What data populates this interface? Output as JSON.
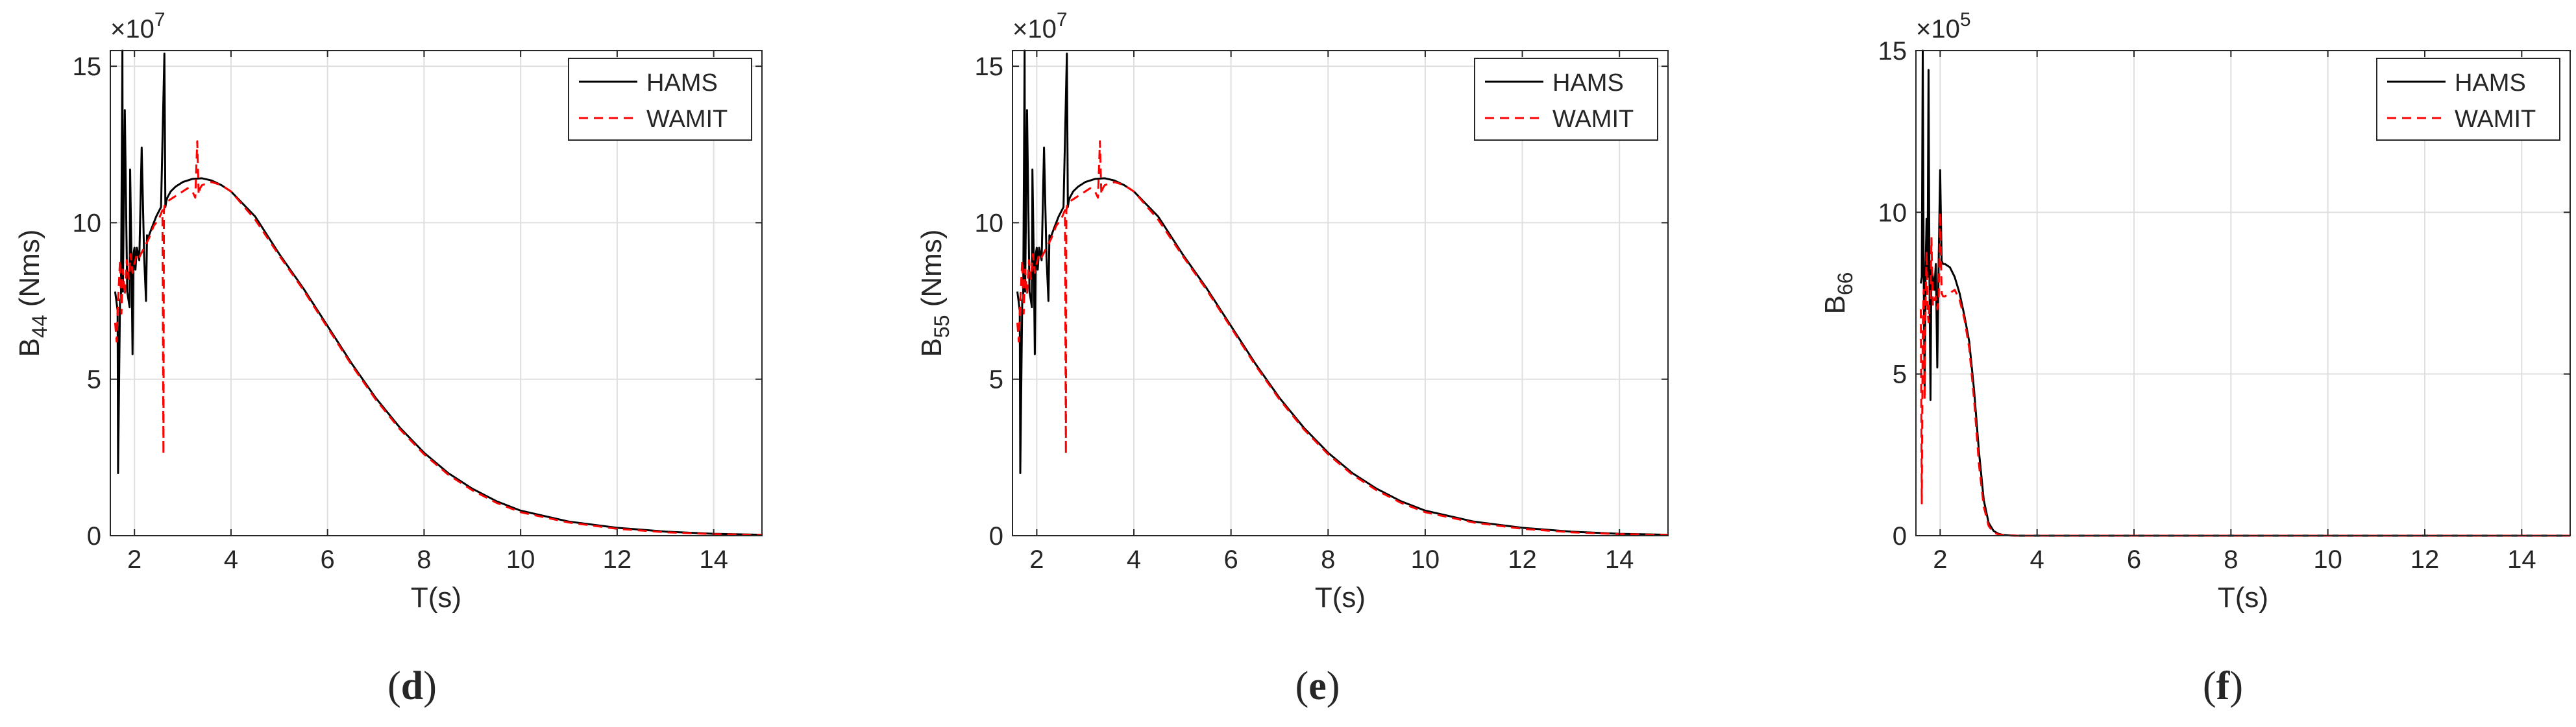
{
  "colors": {
    "hams": "#000000",
    "wamit": "#ff0000",
    "grid": "#dfdfdf",
    "axis": "#262626"
  },
  "chart_data": [
    {
      "type": "line",
      "caption_letter": "d",
      "caption_open": "(",
      "caption_close": ")",
      "xlabel": "T(s)",
      "ylabel_main": "B",
      "ylabel_sub": "44",
      "ylabel_unit": " (Nms)",
      "exponent_base": "×10",
      "exponent_power": "7",
      "xlim": [
        1.5,
        15
      ],
      "ylim": [
        0,
        15.5
      ],
      "xticks": [
        2,
        4,
        6,
        8,
        10,
        12,
        14
      ],
      "yticks": [
        0,
        5,
        10,
        15
      ],
      "legend": [
        "HAMS",
        "WAMIT"
      ],
      "legend_position": "top-right",
      "grid": true,
      "series": [
        {
          "name": "HAMS",
          "style": "solid",
          "x": [
            1.6,
            1.65,
            1.66,
            1.7,
            1.72,
            1.75,
            1.76,
            1.8,
            1.85,
            1.9,
            1.91,
            1.94,
            1.96,
            1.98,
            2.0,
            2.02,
            2.05,
            2.1,
            2.15,
            2.2,
            2.24,
            2.26,
            2.28,
            2.35,
            2.45,
            2.55,
            2.62,
            2.64,
            2.66,
            2.68,
            2.75,
            2.85,
            3.0,
            3.2,
            3.4,
            3.6,
            3.8,
            4.0,
            4.5,
            5.0,
            5.5,
            6.0,
            6.5,
            7.0,
            7.5,
            8.0,
            8.5,
            9.0,
            9.5,
            10.0,
            11.0,
            12.0,
            13.0,
            14.0,
            15.0
          ],
          "y": [
            7.8,
            7.2,
            2.0,
            7.5,
            7.6,
            15.5,
            7.8,
            13.6,
            7.8,
            7.3,
            11.7,
            8.7,
            5.8,
            9.0,
            9.2,
            8.5,
            9.2,
            8.8,
            12.4,
            8.9,
            7.5,
            9.6,
            9.5,
            9.8,
            10.2,
            10.5,
            15.4,
            10.5,
            10.7,
            10.8,
            11.0,
            11.15,
            11.3,
            11.4,
            11.42,
            11.35,
            11.2,
            11.0,
            10.2,
            9.0,
            7.9,
            6.7,
            5.5,
            4.4,
            3.45,
            2.65,
            2.0,
            1.5,
            1.1,
            0.8,
            0.45,
            0.25,
            0.13,
            0.06,
            0.03
          ]
        },
        {
          "name": "WAMIT",
          "style": "dashed",
          "x": [
            1.6,
            1.63,
            1.66,
            1.7,
            1.73,
            1.76,
            1.8,
            1.84,
            1.88,
            1.92,
            1.96,
            2.0,
            2.05,
            2.1,
            2.2,
            2.3,
            2.4,
            2.5,
            2.58,
            2.6,
            2.61,
            2.63,
            2.7,
            2.8,
            2.9,
            3.0,
            3.1,
            3.2,
            3.26,
            3.3,
            3.33,
            3.36,
            3.4,
            3.5,
            3.6,
            3.8,
            4.0,
            4.5,
            5.0,
            5.5,
            6.0,
            6.5,
            7.0,
            7.5,
            8.0,
            8.5,
            9.0,
            9.5,
            10.0,
            11.0,
            12.0,
            13.0,
            14.0,
            15.0
          ],
          "y": [
            6.8,
            6.2,
            7.5,
            8.8,
            7.1,
            8.5,
            7.7,
            8.8,
            8.2,
            9.0,
            8.4,
            8.7,
            9.0,
            8.9,
            9.2,
            9.5,
            9.9,
            10.1,
            10.4,
            2.6,
            10.4,
            10.6,
            10.7,
            10.8,
            10.9,
            11.0,
            11.1,
            11.0,
            10.8,
            12.6,
            10.9,
            11.1,
            11.2,
            11.25,
            11.3,
            11.2,
            11.0,
            10.1,
            8.95,
            7.85,
            6.65,
            5.45,
            4.35,
            3.4,
            2.6,
            1.95,
            1.45,
            1.05,
            0.75,
            0.42,
            0.22,
            0.11,
            0.05,
            0.02
          ]
        }
      ]
    },
    {
      "type": "line",
      "caption_letter": "e",
      "caption_open": "(",
      "caption_close": ")",
      "xlabel": "T(s)",
      "ylabel_main": "B",
      "ylabel_sub": "55",
      "ylabel_unit": " (Nms)",
      "exponent_base": "×10",
      "exponent_power": "7",
      "xlim": [
        1.5,
        15
      ],
      "ylim": [
        0,
        15.5
      ],
      "xticks": [
        2,
        4,
        6,
        8,
        10,
        12,
        14
      ],
      "yticks": [
        0,
        5,
        10,
        15
      ],
      "legend": [
        "HAMS",
        "WAMIT"
      ],
      "legend_position": "top-right",
      "grid": true,
      "series": [
        {
          "name": "HAMS",
          "style": "solid",
          "x": [
            1.6,
            1.65,
            1.66,
            1.7,
            1.72,
            1.75,
            1.76,
            1.8,
            1.85,
            1.9,
            1.91,
            1.94,
            1.96,
            1.98,
            2.0,
            2.02,
            2.05,
            2.1,
            2.15,
            2.2,
            2.24,
            2.26,
            2.28,
            2.35,
            2.45,
            2.55,
            2.62,
            2.64,
            2.66,
            2.68,
            2.75,
            2.85,
            3.0,
            3.2,
            3.4,
            3.6,
            3.8,
            4.0,
            4.5,
            5.0,
            5.5,
            6.0,
            6.5,
            7.0,
            7.5,
            8.0,
            8.5,
            9.0,
            9.5,
            10.0,
            11.0,
            12.0,
            13.0,
            14.0,
            15.0
          ],
          "y": [
            7.8,
            7.2,
            2.0,
            7.5,
            7.6,
            15.5,
            7.8,
            13.6,
            7.8,
            7.3,
            11.7,
            8.7,
            5.8,
            9.0,
            9.2,
            8.5,
            9.2,
            8.8,
            12.4,
            8.9,
            7.5,
            9.6,
            9.5,
            9.8,
            10.2,
            10.5,
            15.4,
            10.5,
            10.7,
            10.8,
            11.0,
            11.15,
            11.3,
            11.4,
            11.42,
            11.35,
            11.2,
            11.0,
            10.2,
            9.0,
            7.9,
            6.7,
            5.5,
            4.4,
            3.45,
            2.65,
            2.0,
            1.5,
            1.1,
            0.8,
            0.45,
            0.25,
            0.13,
            0.06,
            0.03
          ]
        },
        {
          "name": "WAMIT",
          "style": "dashed",
          "x": [
            1.6,
            1.63,
            1.66,
            1.7,
            1.73,
            1.76,
            1.8,
            1.84,
            1.88,
            1.92,
            1.96,
            2.0,
            2.05,
            2.1,
            2.2,
            2.3,
            2.4,
            2.5,
            2.58,
            2.6,
            2.61,
            2.63,
            2.7,
            2.8,
            2.9,
            3.0,
            3.1,
            3.2,
            3.26,
            3.3,
            3.33,
            3.36,
            3.4,
            3.5,
            3.6,
            3.8,
            4.0,
            4.5,
            5.0,
            5.5,
            6.0,
            6.5,
            7.0,
            7.5,
            8.0,
            8.5,
            9.0,
            9.5,
            10.0,
            11.0,
            12.0,
            13.0,
            14.0,
            15.0
          ],
          "y": [
            6.8,
            6.2,
            7.5,
            8.8,
            7.1,
            8.5,
            7.7,
            8.8,
            8.2,
            9.0,
            8.4,
            8.7,
            9.0,
            8.9,
            9.2,
            9.5,
            9.9,
            10.1,
            10.4,
            2.6,
            10.4,
            10.6,
            10.7,
            10.8,
            10.9,
            11.0,
            11.1,
            11.0,
            10.8,
            12.6,
            10.9,
            11.1,
            11.2,
            11.25,
            11.3,
            11.2,
            11.0,
            10.1,
            8.95,
            7.85,
            6.65,
            5.45,
            4.35,
            3.4,
            2.6,
            1.95,
            1.45,
            1.05,
            0.75,
            0.42,
            0.22,
            0.11,
            0.05,
            0.02
          ]
        }
      ]
    },
    {
      "type": "line",
      "caption_letter": "f",
      "caption_open": "(",
      "caption_close": ")",
      "xlabel": "T(s)",
      "ylabel_main": "B",
      "ylabel_sub": "66",
      "ylabel_unit": "",
      "exponent_base": "×10",
      "exponent_power": "5",
      "xlim": [
        1.5,
        15
      ],
      "ylim": [
        0,
        15
      ],
      "xticks": [
        2,
        4,
        6,
        8,
        10,
        12,
        14
      ],
      "yticks": [
        0,
        5,
        10,
        15
      ],
      "legend": [
        "HAMS",
        "WAMIT"
      ],
      "legend_position": "top-right",
      "grid": true,
      "series": [
        {
          "name": "HAMS",
          "style": "solid",
          "x": [
            1.6,
            1.62,
            1.64,
            1.66,
            1.68,
            1.7,
            1.72,
            1.74,
            1.76,
            1.78,
            1.8,
            1.82,
            1.85,
            1.88,
            1.91,
            1.94,
            1.97,
            2.0,
            2.03,
            2.06,
            2.1,
            2.2,
            2.3,
            2.4,
            2.5,
            2.6,
            2.7,
            2.8,
            2.9,
            3.0,
            3.1,
            3.2,
            3.3,
            3.4,
            3.6,
            4.0,
            5.0,
            6.0,
            8.0,
            10.0,
            12.0,
            14.0,
            15.0
          ],
          "y": [
            7.8,
            8.0,
            15.0,
            8.2,
            4.5,
            8.3,
            9.8,
            8.0,
            14.4,
            7.9,
            4.2,
            8.3,
            8.0,
            7.6,
            8.4,
            5.2,
            8.6,
            11.3,
            8.5,
            8.4,
            8.4,
            8.3,
            8.0,
            7.5,
            6.8,
            6.0,
            4.5,
            2.6,
            1.1,
            0.4,
            0.15,
            0.06,
            0.02,
            0.01,
            0.0,
            0.0,
            0.0,
            0.0,
            0.0,
            0.0,
            0.0,
            0.0,
            0.0
          ]
        },
        {
          "name": "WAMIT",
          "style": "dashed",
          "x": [
            1.6,
            1.62,
            1.64,
            1.66,
            1.68,
            1.7,
            1.72,
            1.74,
            1.76,
            1.78,
            1.8,
            1.82,
            1.85,
            1.88,
            1.91,
            1.94,
            1.97,
            2.0,
            2.03,
            2.06,
            2.1,
            2.2,
            2.3,
            2.4,
            2.5,
            2.6,
            2.7,
            2.8,
            2.9,
            3.0,
            3.1,
            3.2,
            3.3,
            3.4,
            3.6,
            4.0,
            5.0,
            6.0,
            8.0,
            10.0,
            12.0,
            14.0,
            15.0
          ],
          "y": [
            7.0,
            1.0,
            6.4,
            7.6,
            4.2,
            7.2,
            8.8,
            7.0,
            6.6,
            7.2,
            7.3,
            9.2,
            7.1,
            7.3,
            7.4,
            7.0,
            7.4,
            10.0,
            7.5,
            7.4,
            7.4,
            7.5,
            7.6,
            7.3,
            6.7,
            5.8,
            4.2,
            2.2,
            0.9,
            0.3,
            0.1,
            0.04,
            0.02,
            0.01,
            0.0,
            0.0,
            0.0,
            0.0,
            0.0,
            0.0,
            0.0,
            0.0,
            0.0
          ]
        }
      ]
    }
  ]
}
